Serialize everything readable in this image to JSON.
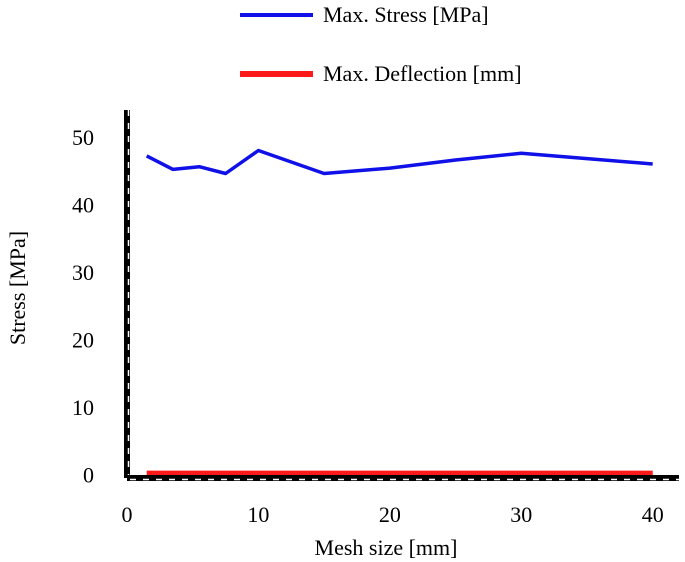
{
  "chart_data": {
    "type": "line",
    "title": "",
    "xlabel": "Mesh size [mm]",
    "ylabel": "Stress [MPa]",
    "xlim": [
      0,
      42
    ],
    "ylim": [
      -0.5,
      54
    ],
    "xticks": [
      0,
      10,
      20,
      30,
      40
    ],
    "yticks": [
      0,
      10,
      20,
      30,
      40,
      50
    ],
    "legend_position": "top",
    "series": [
      {
        "name": "Max. Stress [MPa]",
        "color": "#1010e8",
        "x": [
          1.5,
          3.5,
          5.5,
          7.5,
          10,
          15,
          20,
          25,
          30,
          35,
          40
        ],
        "y": [
          47.2,
          45.2,
          45.6,
          44.6,
          48.0,
          44.6,
          45.4,
          46.6,
          47.6,
          46.8,
          46.0
        ]
      },
      {
        "name": "Max. Deflection [mm]",
        "color": "#ff1a1a",
        "x": [
          1.5,
          3.5,
          5.5,
          7.5,
          10,
          15,
          20,
          25,
          30,
          35,
          40
        ],
        "y": [
          0,
          0,
          0,
          0,
          0,
          0,
          0,
          0,
          0,
          0,
          0
        ]
      }
    ]
  }
}
